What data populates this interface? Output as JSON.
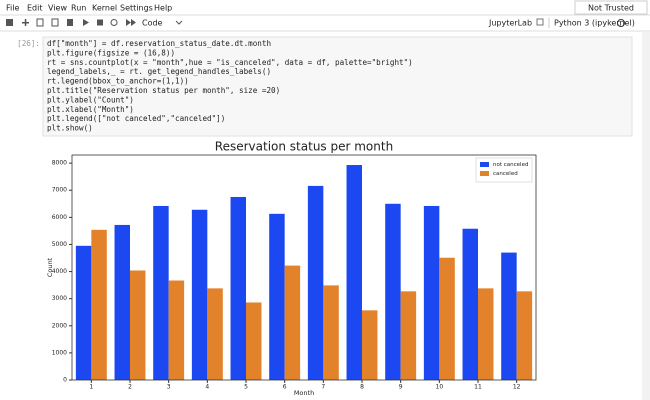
{
  "menu": [
    "File",
    "Edit",
    "View",
    "Run",
    "Kernel",
    "Settings",
    "Help"
  ],
  "trust": "Not Trusted",
  "toolbar": {
    "cell_type": "Code",
    "app": "JupyterLab",
    "kernel": "Python 3 (ipykernel)"
  },
  "cell": {
    "prompt": "[26]:",
    "code": [
      "df[\"month\"] = df.reservation_status_date.dt.month",
      "plt.figure(figsize = (16,8))",
      "rt = sns.countplot(x = \"month\",hue = \"is_canceled\", data = df, palette=\"bright\")",
      "legend_labels,_ = rt. get_legend_handles_labels()",
      "rt.legend(bbox_to_anchor=(1,1))",
      "plt.title(\"Reservation status per month\", size =20)",
      "plt.ylabel(\"Count\")",
      "plt.xlabel(\"Month\")",
      "plt.legend([\"not canceled\",\"canceled\"])",
      "plt.show()"
    ]
  },
  "chart_data": {
    "type": "bar",
    "title": "Reservation status per month",
    "x_label": "Month",
    "y_label": "Count",
    "categories": [
      "1",
      "2",
      "3",
      "4",
      "5",
      "6",
      "7",
      "8",
      "9",
      "10",
      "11",
      "12"
    ],
    "series": [
      {
        "name": "not canceled",
        "color": "#1b48f0",
        "values": [
          4950,
          5720,
          6420,
          6280,
          6750,
          6130,
          7160,
          7930,
          6500,
          6420,
          5580,
          4700
        ]
      },
      {
        "name": "canceled",
        "color": "#e2822a",
        "values": [
          5540,
          4040,
          3670,
          3380,
          2860,
          4220,
          3490,
          2570,
          3270,
          4510,
          3380,
          3270
        ]
      }
    ],
    "ylim": [
      0,
      8300
    ],
    "yticks": [
      0,
      1000,
      2000,
      3000,
      4000,
      5000,
      6000,
      7000,
      8000
    ],
    "legend": "upper right"
  }
}
